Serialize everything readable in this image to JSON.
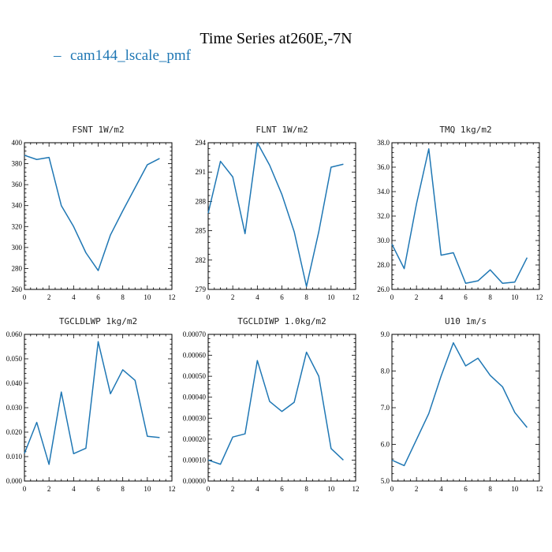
{
  "title": "Time Series at260E,-7N",
  "legend": {
    "label": "cam144_lscale_pmf",
    "color": "#1f77b4"
  },
  "chart_data": [
    {
      "type": "line",
      "title": "FSNT   1W/m2",
      "x": [
        0,
        1,
        2,
        3,
        4,
        5,
        6,
        7,
        8,
        9,
        10,
        11
      ],
      "series": [
        {
          "values": [
            388,
            384,
            386,
            340,
            320,
            295,
            278,
            312,
            335,
            357,
            379,
            385
          ]
        }
      ],
      "xlim": [
        0,
        12
      ],
      "ylim": [
        260,
        400
      ],
      "xticks": [
        0,
        2,
        4,
        6,
        8,
        10,
        12
      ],
      "xtick_labels": [
        "0",
        "2",
        "4",
        "6",
        "8",
        "10",
        "12"
      ],
      "yticks": [
        260,
        280,
        300,
        320,
        340,
        360,
        380,
        400
      ],
      "ytick_labels": [
        "260",
        "280",
        "300",
        "320",
        "340",
        "360",
        "380",
        "400"
      ]
    },
    {
      "type": "line",
      "title": "FLNT   1W/m2",
      "x": [
        0,
        1,
        2,
        3,
        4,
        5,
        6,
        7,
        8,
        9,
        10,
        11
      ],
      "series": [
        {
          "values": [
            286.8,
            292.1,
            290.5,
            284.7,
            294.0,
            291.7,
            288.7,
            284.9,
            279.3,
            284.9,
            291.5,
            291.8
          ]
        }
      ],
      "xlim": [
        0,
        12
      ],
      "ylim": [
        279,
        294
      ],
      "xticks": [
        0,
        2,
        4,
        6,
        8,
        10,
        12
      ],
      "xtick_labels": [
        "0",
        "2",
        "4",
        "6",
        "8",
        "10",
        "12"
      ],
      "yticks": [
        279,
        282,
        285,
        288,
        291,
        294
      ],
      "ytick_labels": [
        "279",
        "282",
        "285",
        "288",
        "291",
        "294"
      ]
    },
    {
      "type": "line",
      "title": "TMQ   1kg/m2",
      "x": [
        0,
        1,
        2,
        3,
        4,
        5,
        6,
        7,
        8,
        9,
        10,
        11
      ],
      "series": [
        {
          "values": [
            29.7,
            27.7,
            33.0,
            37.5,
            28.8,
            29.0,
            26.5,
            26.7,
            27.6,
            26.5,
            26.6,
            28.6
          ]
        }
      ],
      "xlim": [
        0,
        12
      ],
      "ylim": [
        26.0,
        38.0
      ],
      "xticks": [
        0,
        2,
        4,
        6,
        8,
        10,
        12
      ],
      "xtick_labels": [
        "0",
        "2",
        "4",
        "6",
        "8",
        "10",
        "12"
      ],
      "yticks": [
        26,
        28,
        30,
        32,
        34,
        36,
        38
      ],
      "ytick_labels": [
        "26.0",
        "28.0",
        "30.0",
        "32.0",
        "34.0",
        "36.0",
        "38.0"
      ]
    },
    {
      "type": "line",
      "title": "TGCLDLWP   1kg/m2",
      "x": [
        0,
        1,
        2,
        3,
        4,
        5,
        6,
        7,
        8,
        9,
        10,
        11
      ],
      "series": [
        {
          "values": [
            0.0113,
            0.024,
            0.0068,
            0.0364,
            0.0112,
            0.0134,
            0.057,
            0.0357,
            0.0455,
            0.0412,
            0.0183,
            0.0178
          ]
        }
      ],
      "xlim": [
        0,
        12
      ],
      "ylim": [
        0,
        0.06
      ],
      "xticks": [
        0,
        2,
        4,
        6,
        8,
        10,
        12
      ],
      "xtick_labels": [
        "0",
        "2",
        "4",
        "6",
        "8",
        "10",
        "12"
      ],
      "yticks": [
        0,
        0.01,
        0.02,
        0.03,
        0.04,
        0.05,
        0.06
      ],
      "ytick_labels": [
        "0.000",
        "0.010",
        "0.020",
        "0.030",
        "0.040",
        "0.050",
        "0.060"
      ]
    },
    {
      "type": "line",
      "title": "TGCLDIWP   1.0kg/m2",
      "x": [
        0,
        1,
        2,
        3,
        4,
        5,
        6,
        7,
        8,
        9,
        10,
        11
      ],
      "series": [
        {
          "values": [
            0.0001,
            8e-05,
            0.00021,
            0.000225,
            0.000575,
            0.00038,
            0.000332,
            0.000376,
            0.000615,
            0.0005,
            0.000155,
            0.0001
          ]
        }
      ],
      "xlim": [
        0,
        12
      ],
      "ylim": [
        0,
        0.0007
      ],
      "xticks": [
        0,
        2,
        4,
        6,
        8,
        10,
        12
      ],
      "xtick_labels": [
        "0",
        "2",
        "4",
        "6",
        "8",
        "10",
        "12"
      ],
      "yticks": [
        0,
        0.0001,
        0.0002,
        0.0003,
        0.0004,
        0.0005,
        0.0006,
        0.0007
      ],
      "ytick_labels": [
        "0.00000",
        "0.00010",
        "0.00020",
        "0.00030",
        "0.00040",
        "0.00050",
        "0.00060",
        "0.00070"
      ]
    },
    {
      "type": "line",
      "title": "U10   1m/s",
      "x": [
        0,
        1,
        2,
        3,
        4,
        5,
        6,
        7,
        8,
        9,
        10,
        11
      ],
      "series": [
        {
          "values": [
            5.57,
            5.42,
            6.13,
            6.84,
            7.86,
            8.77,
            8.14,
            8.35,
            7.88,
            7.57,
            6.87,
            6.46
          ]
        }
      ],
      "xlim": [
        0,
        12
      ],
      "ylim": [
        5.0,
        9.0
      ],
      "xticks": [
        0,
        2,
        4,
        6,
        8,
        10,
        12
      ],
      "xtick_labels": [
        "0",
        "2",
        "4",
        "6",
        "8",
        "10",
        "12"
      ],
      "yticks": [
        5,
        6,
        7,
        8,
        9
      ],
      "ytick_labels": [
        "5.0",
        "6.0",
        "7.0",
        "8.0",
        "9.0"
      ]
    }
  ]
}
